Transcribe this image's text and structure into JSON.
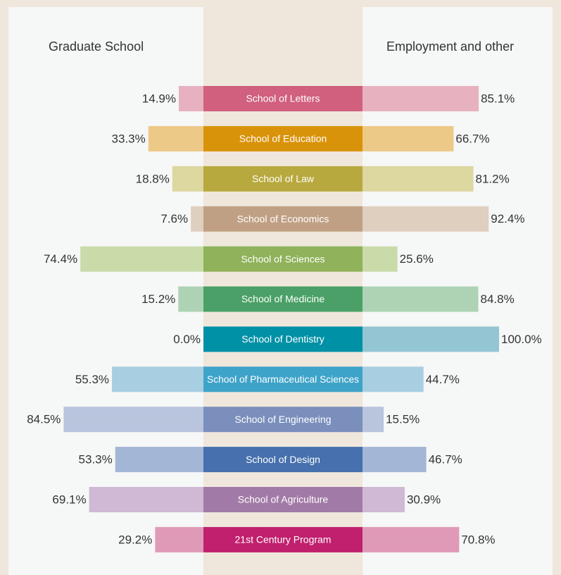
{
  "chart_data": {
    "type": "bar",
    "categories": [
      "School of Letters",
      "School of Education",
      "School of Law",
      "School of Economics",
      "School of Sciences",
      "School of Medicine",
      "School of Dentistry",
      "School of Pharmaceutical Sciences",
      "School of Engineering",
      "School of Design",
      "School of Agriculture",
      "21st Century Program"
    ],
    "colors": [
      "#d0607e",
      "#d9930a",
      "#b8a93e",
      "#c0a084",
      "#8fb25a",
      "#4aa066",
      "#0091a6",
      "#3ea3c9",
      "#7a8fbc",
      "#4670ae",
      "#a27aa7",
      "#c0206e"
    ],
    "bar_colors": [
      "#e8b1bf",
      "#edc987",
      "#ddd7a0",
      "#dfcfbf",
      "#c8dba9",
      "#add3b4",
      "#93c6d2",
      "#a8cfe1",
      "#b9c4dd",
      "#a4b6d6",
      "#d0b9d4",
      "#df9ab8"
    ],
    "series": [
      {
        "name": "Graduate School",
        "values": [
          14.9,
          33.3,
          18.8,
          7.6,
          74.4,
          15.2,
          0.0,
          55.3,
          84.5,
          53.3,
          69.1,
          29.2
        ],
        "value_labels": [
          "14.9%",
          "33.3%",
          "18.8%",
          "7.6%",
          "74.4%",
          "15.2%",
          "0.0%",
          "55.3%",
          "84.5%",
          "53.3%",
          "69.1%",
          "29.2%"
        ]
      },
      {
        "name": "Employment and other",
        "values": [
          85.1,
          66.7,
          81.2,
          92.4,
          25.6,
          84.8,
          100.0,
          44.7,
          15.5,
          46.7,
          30.9,
          70.8
        ],
        "value_labels": [
          "85.1%",
          "66.7%",
          "81.2%",
          "92.4%",
          "25.6%",
          "84.8%",
          "100.0%",
          "44.7%",
          "15.5%",
          "46.7%",
          "30.9%",
          "70.8%"
        ]
      }
    ]
  }
}
